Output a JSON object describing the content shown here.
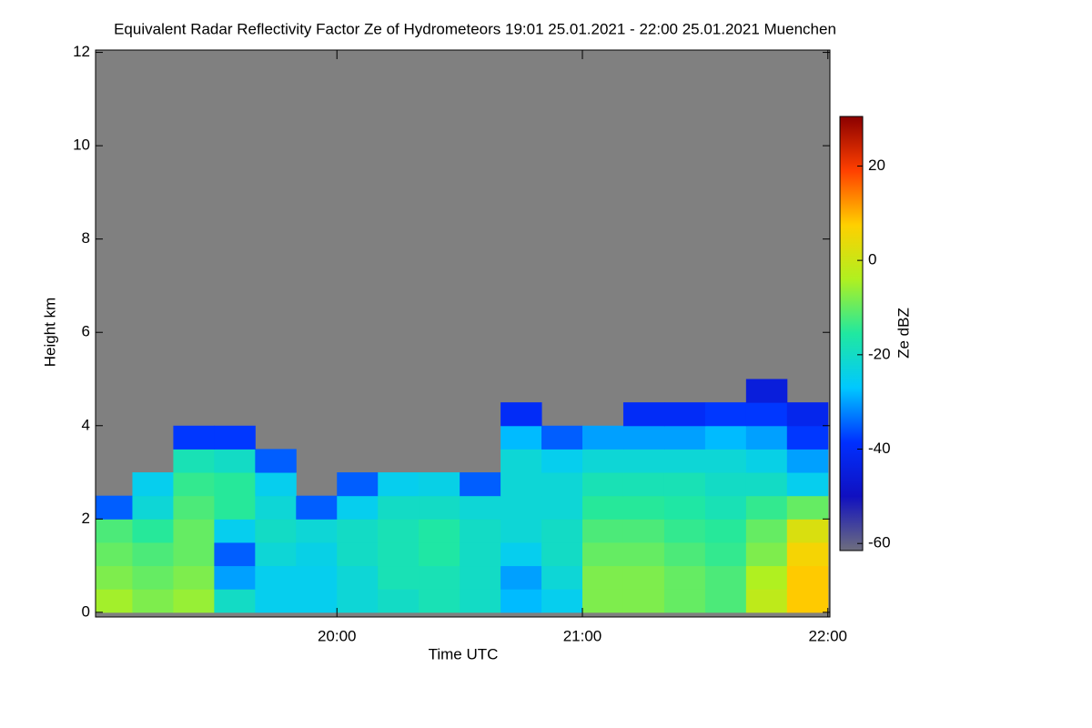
{
  "chart_data": {
    "type": "heatmap",
    "title": "Equivalent Radar Reflectivity Factor Ze of Hydrometeors   19:01 25.01.2021 - 22:00 25.01.2021 Muenchen",
    "xlabel": "Time UTC",
    "ylabel": "Height km",
    "colorbar_label": "Ze dBZ",
    "xlim": [
      1141,
      1320.5
    ],
    "xticks": [
      {
        "value": 1200,
        "label": "20:00"
      },
      {
        "value": 1260,
        "label": "21:00"
      },
      {
        "value": 1320,
        "label": "22:00"
      }
    ],
    "ylim": [
      -0.1,
      12.05
    ],
    "yticks": [
      0,
      2,
      4,
      6,
      8,
      10,
      12
    ],
    "zlim": [
      -61.5,
      30.5
    ],
    "zticks": [
      -60,
      -40,
      -20,
      0,
      20
    ],
    "colorscale": [
      "#6e6e7e",
      "#1010c0",
      "#0030ff",
      "#00c8ff",
      "#20e8a0",
      "#b0f020",
      "#ffd000",
      "#ff4000",
      "#8b0000"
    ],
    "missing_color": "#808080",
    "xbins": [
      1141,
      1150,
      1160,
      1170,
      1180,
      1190,
      1200,
      1210,
      1220,
      1230,
      1240,
      1250,
      1260,
      1270,
      1280,
      1290,
      1300,
      1310,
      1320
    ],
    "ybins": [
      0,
      0.5,
      1,
      1.5,
      2,
      2.5,
      3,
      3.5,
      4,
      4.5,
      5
    ],
    "z": [
      [
        -5,
        -8,
        -6,
        -20,
        -25,
        -25,
        -22,
        -20,
        -18,
        -20,
        -28,
        -25,
        -8,
        -8,
        -10,
        -12,
        -2,
        8
      ],
      [
        -8,
        -10,
        -8,
        -30,
        -25,
        -25,
        -22,
        -18,
        -18,
        -20,
        -30,
        -22,
        -8,
        -8,
        -10,
        -12,
        -4,
        8
      ],
      [
        -10,
        -12,
        -10,
        -35,
        -22,
        -24,
        -20,
        -18,
        -16,
        -20,
        -25,
        -20,
        -10,
        -10,
        -12,
        -14,
        -8,
        6
      ],
      [
        -12,
        -15,
        -10,
        -25,
        -20,
        -22,
        -20,
        -18,
        -16,
        -20,
        -22,
        -20,
        -12,
        -12,
        -14,
        -15,
        -10,
        2
      ],
      [
        -35,
        -22,
        -12,
        -15,
        -22,
        -35,
        -25,
        -20,
        -20,
        -22,
        -22,
        -22,
        -15,
        -15,
        -16,
        -18,
        -14,
        -10
      ],
      [
        null,
        -25,
        -14,
        -15,
        -25,
        null,
        -35,
        -25,
        -24,
        -35,
        -22,
        -22,
        -18,
        -18,
        -18,
        -20,
        -20,
        -25
      ],
      [
        null,
        null,
        -18,
        -20,
        -35,
        null,
        null,
        null,
        null,
        null,
        -22,
        -25,
        -22,
        -22,
        -22,
        -22,
        -24,
        -30
      ],
      [
        null,
        null,
        -38,
        -38,
        null,
        null,
        null,
        null,
        null,
        null,
        -28,
        -35,
        -30,
        -30,
        -30,
        -28,
        -30,
        -38
      ],
      [
        null,
        null,
        null,
        null,
        null,
        null,
        null,
        null,
        null,
        null,
        -40,
        null,
        null,
        -40,
        -40,
        -38,
        -38,
        -42
      ],
      [
        null,
        null,
        null,
        null,
        null,
        null,
        null,
        null,
        null,
        null,
        null,
        null,
        null,
        null,
        null,
        null,
        -45,
        null
      ]
    ]
  }
}
